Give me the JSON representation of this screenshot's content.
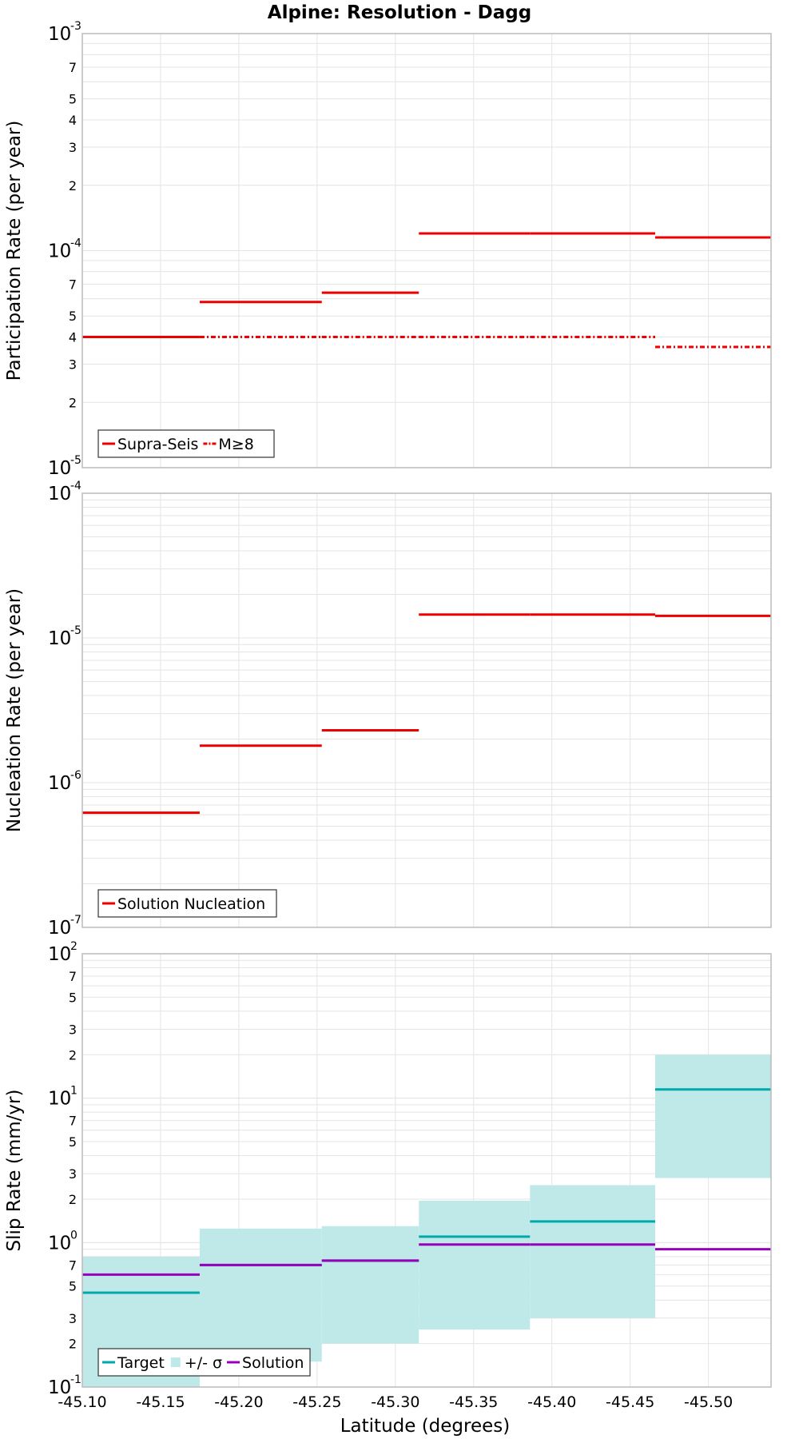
{
  "chart_data": {
    "title": "Alpine: Resolution - Dagg",
    "xlabel": "Latitude (degrees)",
    "x_ticks": [
      "-45.10",
      "-45.15",
      "-45.20",
      "-45.25",
      "-45.30",
      "-45.35",
      "-45.40",
      "-45.45",
      "-45.50"
    ],
    "xlim": [
      -45.1,
      -45.54
    ],
    "grid": true,
    "colors": {
      "red": "#ee0000",
      "teal": "#00aaaa",
      "band": "#bfe9e9",
      "purple": "#9900bb",
      "grid": "#e4e4e4",
      "border": "#bbbbbb"
    },
    "panels": [
      {
        "type": "line",
        "ylabel": "Participation Rate (per year)",
        "yscale": "log",
        "ylim": [
          1e-05,
          0.001
        ],
        "legend_position": "bottom-left",
        "series": [
          {
            "name": "Supra-Seis",
            "style": "solid",
            "color": "red",
            "segments": [
              {
                "x": [
                  -45.1,
                  -45.175
                ],
                "y": 4e-05
              },
              {
                "x": [
                  -45.175,
                  -45.253
                ],
                "y": 5.8e-05
              },
              {
                "x": [
                  -45.253,
                  -45.315
                ],
                "y": 6.4e-05
              },
              {
                "x": [
                  -45.315,
                  -45.386
                ],
                "y": 0.00012
              },
              {
                "x": [
                  -45.386,
                  -45.466
                ],
                "y": 0.00012
              },
              {
                "x": [
                  -45.466,
                  -45.54
                ],
                "y": 0.000115
              }
            ]
          },
          {
            "name": "M≥8",
            "style": "dashdot",
            "color": "red",
            "segments": [
              {
                "x": [
                  -45.1,
                  -45.175
                ],
                "y": 4e-05
              },
              {
                "x": [
                  -45.175,
                  -45.253
                ],
                "y": 4e-05
              },
              {
                "x": [
                  -45.253,
                  -45.315
                ],
                "y": 4e-05
              },
              {
                "x": [
                  -45.315,
                  -45.386
                ],
                "y": 4e-05
              },
              {
                "x": [
                  -45.386,
                  -45.466
                ],
                "y": 4e-05
              },
              {
                "x": [
                  -45.466,
                  -45.54
                ],
                "y": 3.6e-05
              }
            ]
          }
        ]
      },
      {
        "type": "line",
        "ylabel": "Nucleation Rate (per year)",
        "yscale": "log",
        "ylim": [
          1e-07,
          0.0001
        ],
        "legend_position": "bottom-left",
        "series": [
          {
            "name": "Solution Nucleation",
            "style": "solid",
            "color": "red",
            "segments": [
              {
                "x": [
                  -45.1,
                  -45.175
                ],
                "y": 6.2e-07
              },
              {
                "x": [
                  -45.175,
                  -45.253
                ],
                "y": 1.8e-06
              },
              {
                "x": [
                  -45.253,
                  -45.315
                ],
                "y": 2.3e-06
              },
              {
                "x": [
                  -45.315,
                  -45.386
                ],
                "y": 1.45e-05
              },
              {
                "x": [
                  -45.386,
                  -45.466
                ],
                "y": 1.45e-05
              },
              {
                "x": [
                  -45.466,
                  -45.54
                ],
                "y": 1.42e-05
              }
            ]
          }
        ]
      },
      {
        "type": "line",
        "ylabel": "Slip Rate (mm/yr)",
        "yscale": "log",
        "ylim": [
          0.1,
          100
        ],
        "legend_position": "bottom-left",
        "bands": [
          {
            "name": "+/- σ",
            "color": "band",
            "segments": [
              {
                "x": [
                  -45.1,
                  -45.175
                ],
                "low": 0.1,
                "high": 0.8
              },
              {
                "x": [
                  -45.175,
                  -45.253
                ],
                "low": 0.15,
                "high": 1.25
              },
              {
                "x": [
                  -45.253,
                  -45.315
                ],
                "low": 0.2,
                "high": 1.3
              },
              {
                "x": [
                  -45.315,
                  -45.386
                ],
                "low": 0.25,
                "high": 1.95
              },
              {
                "x": [
                  -45.386,
                  -45.466
                ],
                "low": 0.3,
                "high": 2.5
              },
              {
                "x": [
                  -45.466,
                  -45.54
                ],
                "low": 2.8,
                "high": 20
              }
            ]
          }
        ],
        "series": [
          {
            "name": "Target",
            "style": "solid",
            "color": "teal",
            "segments": [
              {
                "x": [
                  -45.1,
                  -45.175
                ],
                "y": 0.45
              },
              {
                "x": [
                  -45.175,
                  -45.253
                ],
                "y": 0.7
              },
              {
                "x": [
                  -45.253,
                  -45.315
                ],
                "y": 0.75
              },
              {
                "x": [
                  -45.315,
                  -45.386
                ],
                "y": 1.1
              },
              {
                "x": [
                  -45.386,
                  -45.466
                ],
                "y": 1.4
              },
              {
                "x": [
                  -45.466,
                  -45.54
                ],
                "y": 11.5
              }
            ]
          },
          {
            "name": "Solution",
            "style": "solid",
            "color": "purple",
            "segments": [
              {
                "x": [
                  -45.1,
                  -45.175
                ],
                "y": 0.6
              },
              {
                "x": [
                  -45.175,
                  -45.253
                ],
                "y": 0.7
              },
              {
                "x": [
                  -45.253,
                  -45.315
                ],
                "y": 0.75
              },
              {
                "x": [
                  -45.315,
                  -45.386
                ],
                "y": 0.97
              },
              {
                "x": [
                  -45.386,
                  -45.466
                ],
                "y": 0.97
              },
              {
                "x": [
                  -45.466,
                  -45.54
                ],
                "y": 0.9
              }
            ]
          }
        ]
      }
    ]
  }
}
